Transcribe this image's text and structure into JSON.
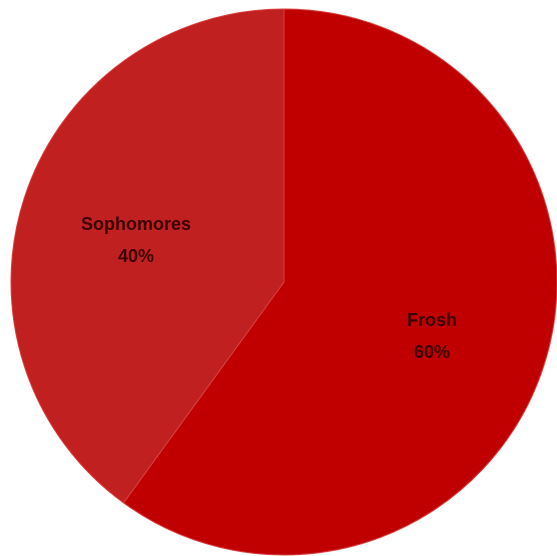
{
  "chart_data": {
    "type": "pie",
    "categories": [
      "Frosh",
      "Sophomores"
    ],
    "values": [
      60,
      40
    ],
    "value_labels": [
      "60%",
      "40%"
    ],
    "colors": [
      "#c00000",
      "#c0201f"
    ],
    "start": "top",
    "direction": "clockwise",
    "legend": "none"
  }
}
